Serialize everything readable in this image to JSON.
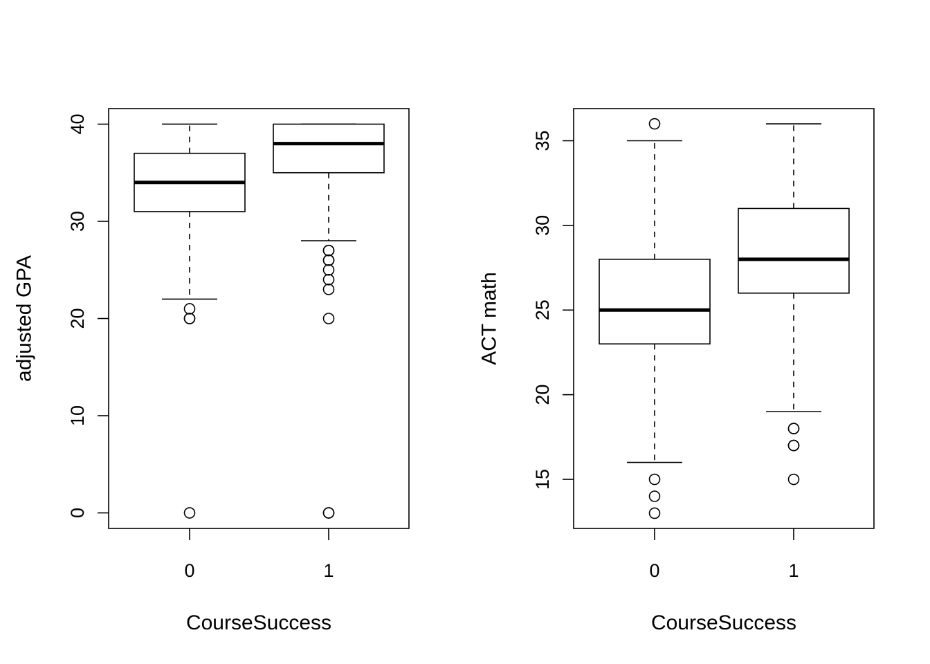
{
  "chart_data": [
    {
      "type": "boxplot",
      "xlabel": "CourseSuccess",
      "ylabel": "adjusted GPA",
      "categories": [
        "0",
        "1"
      ],
      "ylim": [
        -1.6,
        41.6
      ],
      "yticks": [
        0,
        10,
        20,
        30,
        40
      ],
      "grid": false,
      "boxes": [
        {
          "category": "0",
          "whisker_low": 22,
          "q1": 31,
          "median": 34,
          "q3": 37,
          "whisker_high": 40,
          "outliers": [
            21,
            20,
            20,
            0
          ]
        },
        {
          "category": "1",
          "whisker_low": 28,
          "q1": 35,
          "median": 38,
          "q3": 40,
          "whisker_high": 40,
          "outliers": [
            27,
            27,
            26,
            26,
            25,
            24,
            23,
            20,
            0,
            0
          ]
        }
      ]
    },
    {
      "type": "boxplot",
      "xlabel": "CourseSuccess",
      "ylabel": "ACT math",
      "categories": [
        "0",
        "1"
      ],
      "ylim": [
        12.1,
        36.9
      ],
      "yticks": [
        15,
        20,
        25,
        30,
        35
      ],
      "grid": false,
      "boxes": [
        {
          "category": "0",
          "whisker_low": 16,
          "q1": 23,
          "median": 25,
          "q3": 28,
          "whisker_high": 35,
          "outliers": [
            36,
            15,
            14,
            13
          ]
        },
        {
          "category": "1",
          "whisker_low": 19,
          "q1": 26,
          "median": 28,
          "q3": 31,
          "whisker_high": 36,
          "outliers": [
            18,
            18,
            17,
            17,
            15
          ]
        }
      ]
    }
  ]
}
